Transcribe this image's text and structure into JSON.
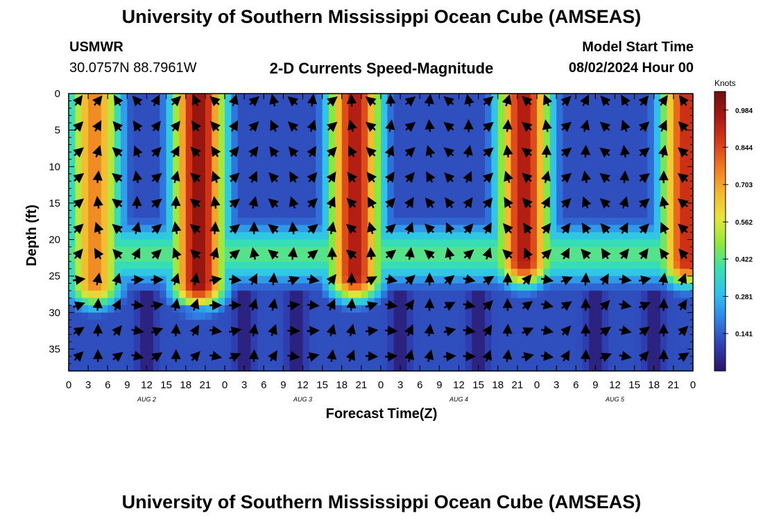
{
  "header": {
    "title": "University of Southern Mississippi Ocean Cube (AMSEAS)",
    "station_id": "USMWR",
    "station_coords": "30.0757N  88.7961W",
    "plot_title": "2-D Currents Speed-Magnitude",
    "model_start_label": "Model Start Time",
    "model_start_value": "08/02/2024 Hour 00"
  },
  "footer": {
    "title": "University of Southern Mississippi Ocean Cube (AMSEAS)"
  },
  "chart_data": {
    "type": "heatmap",
    "title": "2-D Currents Speed-Magnitude",
    "xlabel": "Forecast Time(Z)",
    "ylabel": "Depth (ft)",
    "x_ticks": [
      "0",
      "3",
      "6",
      "9",
      "12",
      "15",
      "18",
      "21",
      "0",
      "3",
      "6",
      "9",
      "12",
      "15",
      "18",
      "21",
      "0",
      "3",
      "6",
      "9",
      "12",
      "15",
      "18",
      "21",
      "0",
      "3",
      "6",
      "9",
      "12",
      "15",
      "18",
      "21",
      "0"
    ],
    "xlim_hours": [
      0,
      96
    ],
    "day_labels": [
      {
        "label": "AUG 2",
        "hour": 12
      },
      {
        "label": "AUG 3",
        "hour": 36
      },
      {
        "label": "AUG 4",
        "hour": 60
      },
      {
        "label": "AUG 5",
        "hour": 84
      }
    ],
    "y_ticks": [
      0,
      5,
      10,
      15,
      20,
      25,
      30,
      35
    ],
    "ylim_ft": [
      0,
      38
    ],
    "colorbar": {
      "units": "Knots",
      "ticks": [
        0.984,
        0.844,
        0.703,
        0.562,
        0.422,
        0.281,
        0.141
      ],
      "range": [
        0,
        1.054
      ],
      "colors": [
        "#2b1466",
        "#2f3fb0",
        "#2f7fe6",
        "#2ec0f0",
        "#38e0b0",
        "#8ce83c",
        "#e6e63a",
        "#f5b830",
        "#f07a20",
        "#d83a18",
        "#a81812",
        "#701010"
      ]
    },
    "speed_cores": [
      {
        "hour": 4,
        "depth_max_ft": 26,
        "peak_knots": 0.75
      },
      {
        "hour": 20,
        "depth_max_ft": 26,
        "peak_knots": 1.0
      },
      {
        "hour": 44,
        "depth_max_ft": 25,
        "peak_knots": 0.95
      },
      {
        "hour": 70,
        "depth_max_ft": 23,
        "peak_knots": 0.95
      },
      {
        "hour": 95,
        "depth_max_ft": 23,
        "peak_knots": 0.9
      }
    ],
    "slack_hours": [
      12,
      27,
      35,
      51,
      63,
      81,
      90
    ]
  }
}
